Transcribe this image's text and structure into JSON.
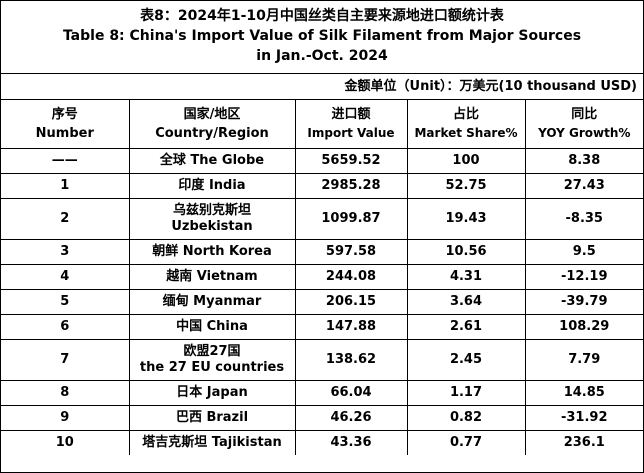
{
  "title": {
    "zh": "表8：2024年1-10月中国丝类自主要来源地进口额统计表",
    "en_line1": "Table 8: China's Import Value of Silk Filament from Major Sources",
    "en_line2": "in Jan.-Oct. 2024"
  },
  "unit_label": "金额单位（Unit）：万美元(10 thousand USD)",
  "headers": [
    {
      "zh": "序号",
      "en": "Number"
    },
    {
      "zh": "国家/地区",
      "en": "Country/Region"
    },
    {
      "zh": "进口额",
      "en": "Import Value"
    },
    {
      "zh": "占比",
      "en": "Market Share%"
    },
    {
      "zh": "同比",
      "en": "YOY Growth%"
    }
  ],
  "rows": [
    {
      "num": "——",
      "country_line1": "全球  The Globe",
      "country_line2": "",
      "value": "5659.52",
      "share": "100",
      "yoy": "8.38"
    },
    {
      "num": "1",
      "country_line1": "印度 India",
      "country_line2": "",
      "value": "2985.28",
      "share": "52.75",
      "yoy": "27.43"
    },
    {
      "num": "2",
      "country_line1": "乌兹别克斯坦",
      "country_line2": "Uzbekistan",
      "value": "1099.87",
      "share": "19.43",
      "yoy": "-8.35"
    },
    {
      "num": "3",
      "country_line1": "朝鲜  North Korea",
      "country_line2": "",
      "value": "597.58",
      "share": "10.56",
      "yoy": "9.5"
    },
    {
      "num": "4",
      "country_line1": "越南 Vietnam",
      "country_line2": "",
      "value": "244.08",
      "share": "4.31",
      "yoy": "-12.19"
    },
    {
      "num": "5",
      "country_line1": "缅甸 Myanmar",
      "country_line2": "",
      "value": "206.15",
      "share": "3.64",
      "yoy": "-39.79"
    },
    {
      "num": "6",
      "country_line1": "中国 China",
      "country_line2": "",
      "value": "147.88",
      "share": "2.61",
      "yoy": "108.29"
    },
    {
      "num": "7",
      "country_line1": "欧盟27国",
      "country_line2": "the 27 EU countries",
      "value": "138.62",
      "share": "2.45",
      "yoy": "7.79"
    },
    {
      "num": "8",
      "country_line1": "日本 Japan",
      "country_line2": "",
      "value": "66.04",
      "share": "1.17",
      "yoy": "14.85"
    },
    {
      "num": "9",
      "country_line1": "巴西 Brazil",
      "country_line2": "",
      "value": "46.26",
      "share": "0.82",
      "yoy": "-31.92"
    },
    {
      "num": "10",
      "country_line1": "塔吉克斯坦 Tajikistan",
      "country_line2": "",
      "value": "43.36",
      "share": "0.77",
      "yoy": "236.1"
    }
  ]
}
